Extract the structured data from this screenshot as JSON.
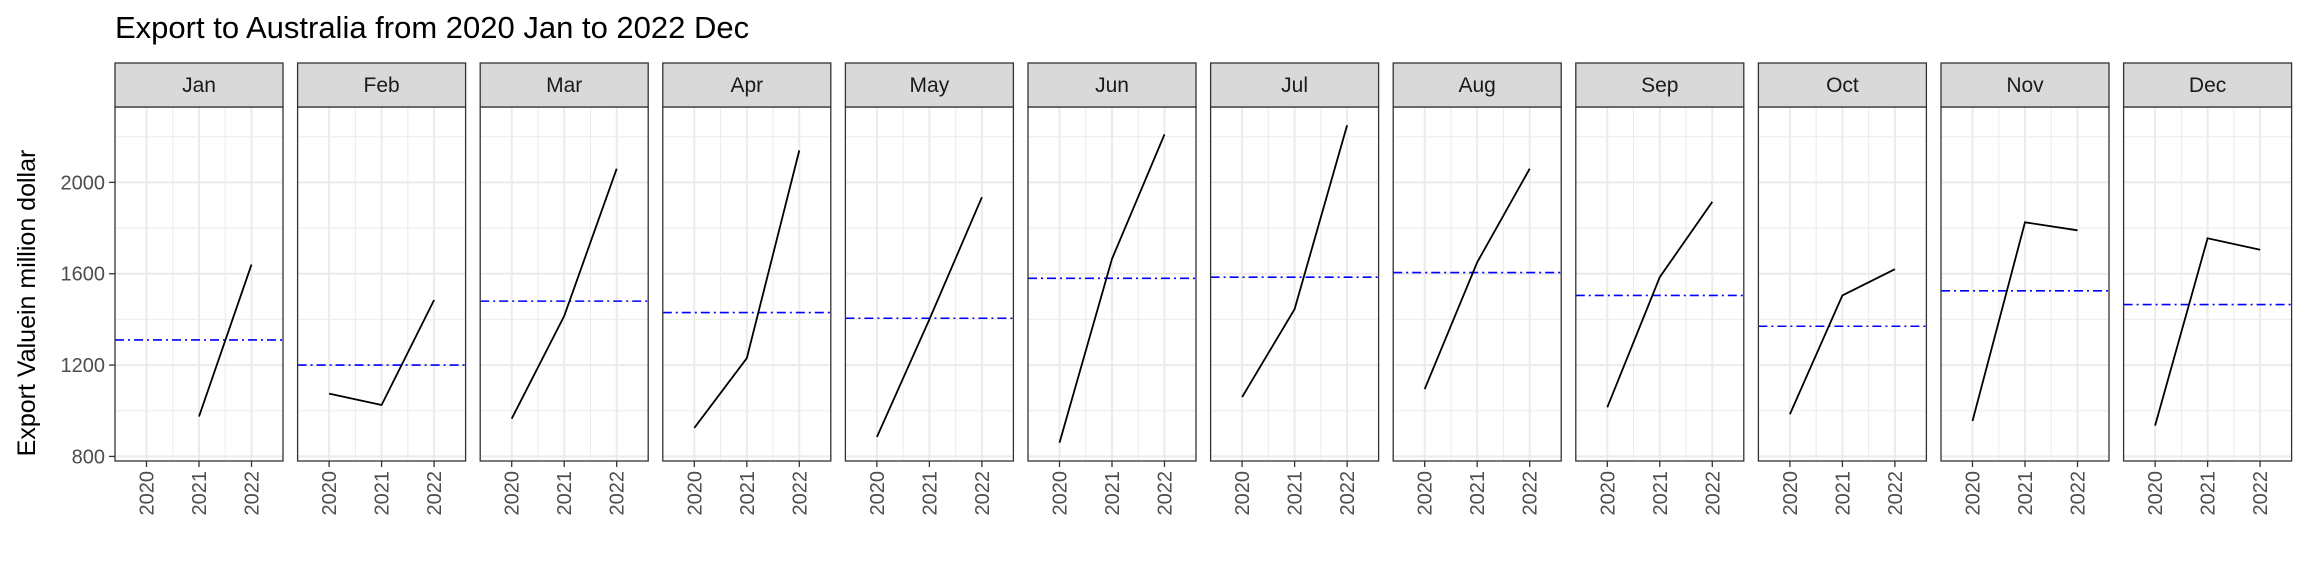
{
  "chart_data": {
    "type": "line",
    "title": "Export to Australia from 2020 Jan to 2022 Dec",
    "xlabel": "",
    "ylabel": "Export Valuein million dollar",
    "x": [
      "2020",
      "2021",
      "2022"
    ],
    "ylim": [
      780,
      2330
    ],
    "y_ticks": [
      800,
      1200,
      1600,
      2000
    ],
    "grid": true,
    "reference_line_style": "dashed blue (mean of panel)",
    "panels": [
      {
        "label": "Jan",
        "years": [
          "2021",
          "2022"
        ],
        "values": [
          975,
          1640
        ],
        "mean": 1310
      },
      {
        "label": "Feb",
        "years": [
          "2020",
          "2021",
          "2022"
        ],
        "values": [
          1075,
          1025,
          1485
        ],
        "mean": 1200
      },
      {
        "label": "Mar",
        "years": [
          "2020",
          "2021",
          "2022"
        ],
        "values": [
          965,
          1415,
          2060
        ],
        "mean": 1480
      },
      {
        "label": "Apr",
        "years": [
          "2020",
          "2021",
          "2022"
        ],
        "values": [
          925,
          1230,
          2140
        ],
        "mean": 1430
      },
      {
        "label": "May",
        "years": [
          "2020",
          "2021",
          "2022"
        ],
        "values": [
          885,
          1400,
          1935
        ],
        "mean": 1405
      },
      {
        "label": "Jun",
        "years": [
          "2020",
          "2021",
          "2022"
        ],
        "values": [
          860,
          1665,
          2210
        ],
        "mean": 1580
      },
      {
        "label": "Jul",
        "years": [
          "2020",
          "2021",
          "2022"
        ],
        "values": [
          1060,
          1445,
          2250
        ],
        "mean": 1585
      },
      {
        "label": "Aug",
        "years": [
          "2020",
          "2021",
          "2022"
        ],
        "values": [
          1095,
          1650,
          2060
        ],
        "mean": 1605
      },
      {
        "label": "Sep",
        "years": [
          "2020",
          "2021",
          "2022"
        ],
        "values": [
          1015,
          1585,
          1915
        ],
        "mean": 1505
      },
      {
        "label": "Oct",
        "years": [
          "2020",
          "2021",
          "2022"
        ],
        "values": [
          985,
          1505,
          1620
        ],
        "mean": 1370
      },
      {
        "label": "Nov",
        "years": [
          "2020",
          "2021",
          "2022"
        ],
        "values": [
          955,
          1825,
          1790
        ],
        "mean": 1525
      },
      {
        "label": "Dec",
        "years": [
          "2020",
          "2021",
          "2022"
        ],
        "values": [
          935,
          1755,
          1705
        ],
        "mean": 1465
      }
    ],
    "colors": {
      "line": "#000000",
      "mean_line": "#0000ff",
      "strip_fill": "#d9d9d9",
      "grid": "#ebebeb",
      "panel_border": "#333333"
    }
  }
}
